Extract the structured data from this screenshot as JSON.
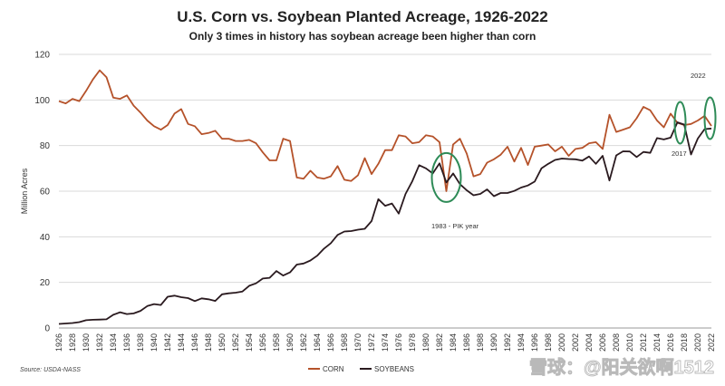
{
  "chart_data": {
    "type": "line",
    "title": "U.S. Corn vs. Soybean Planted Acreage, 1926-2022",
    "subtitle": "Only 3 times in history has soybean acreage been higher than corn",
    "ylabel": "Million Acres",
    "xlabel": "",
    "ylim": [
      0,
      120
    ],
    "yticks": [
      0,
      20,
      40,
      60,
      80,
      100,
      120
    ],
    "xlim": [
      1926,
      2022
    ],
    "xticks": [
      1926,
      1928,
      1930,
      1932,
      1934,
      1936,
      1938,
      1940,
      1942,
      1944,
      1946,
      1948,
      1950,
      1952,
      1954,
      1956,
      1958,
      1960,
      1962,
      1964,
      1966,
      1968,
      1970,
      1972,
      1974,
      1976,
      1978,
      1980,
      1982,
      1984,
      1986,
      1988,
      1990,
      1992,
      1994,
      1996,
      1998,
      2000,
      2002,
      2004,
      2006,
      2008,
      2010,
      2012,
      2014,
      2016,
      2018,
      2020,
      2022
    ],
    "grid": "horizontal",
    "legend": "bottom",
    "series": [
      {
        "name": "CORN",
        "color": "#b5522a",
        "x": [
          1926,
          1927,
          1928,
          1929,
          1930,
          1931,
          1932,
          1933,
          1934,
          1935,
          1936,
          1937,
          1938,
          1939,
          1940,
          1941,
          1942,
          1943,
          1944,
          1945,
          1946,
          1947,
          1948,
          1949,
          1950,
          1951,
          1952,
          1953,
          1954,
          1955,
          1956,
          1957,
          1958,
          1959,
          1960,
          1961,
          1962,
          1963,
          1964,
          1965,
          1966,
          1967,
          1968,
          1969,
          1970,
          1971,
          1972,
          1973,
          1974,
          1975,
          1976,
          1977,
          1978,
          1979,
          1980,
          1981,
          1982,
          1983,
          1984,
          1985,
          1986,
          1987,
          1988,
          1989,
          1990,
          1991,
          1992,
          1993,
          1994,
          1995,
          1996,
          1997,
          1998,
          1999,
          2000,
          2001,
          2002,
          2003,
          2004,
          2005,
          2006,
          2007,
          2008,
          2009,
          2010,
          2011,
          2012,
          2013,
          2014,
          2015,
          2016,
          2017,
          2018,
          2019,
          2020,
          2021,
          2022
        ],
        "values": [
          99.5,
          98.5,
          100.5,
          99.5,
          104,
          109,
          113,
          110,
          101,
          100.5,
          102,
          97.5,
          94.5,
          91,
          88.5,
          87,
          89,
          94,
          96,
          89.5,
          88.5,
          85,
          85.5,
          86.5,
          83,
          83,
          82,
          82,
          82.5,
          81,
          77,
          73.5,
          73.5,
          83,
          82,
          66,
          65.5,
          69,
          66,
          65.5,
          66.5,
          71,
          65,
          64.5,
          67,
          74.5,
          67.5,
          72,
          78,
          78,
          84.5,
          84,
          81,
          81.5,
          84.5,
          84,
          81.5,
          60,
          80.5,
          83,
          76.5,
          66.5,
          67.5,
          72.5,
          74,
          76,
          79.5,
          73,
          79,
          71.5,
          79.5,
          80,
          80.5,
          77.5,
          79.5,
          75.5,
          78.5,
          79,
          81,
          81.5,
          78.5,
          93.5,
          86,
          87,
          88,
          92,
          97,
          95.5,
          91,
          88,
          94,
          90,
          89,
          89.5,
          91,
          93,
          88.6
        ]
      },
      {
        "name": "SOYBEANS",
        "color": "#2a1a1f",
        "x": [
          1926,
          1927,
          1928,
          1929,
          1930,
          1931,
          1932,
          1933,
          1934,
          1935,
          1936,
          1937,
          1938,
          1939,
          1940,
          1941,
          1942,
          1943,
          1944,
          1945,
          1946,
          1947,
          1948,
          1949,
          1950,
          1951,
          1952,
          1953,
          1954,
          1955,
          1956,
          1957,
          1958,
          1959,
          1960,
          1961,
          1962,
          1963,
          1964,
          1965,
          1966,
          1967,
          1968,
          1969,
          1970,
          1971,
          1972,
          1973,
          1974,
          1975,
          1976,
          1977,
          1978,
          1979,
          1980,
          1981,
          1982,
          1983,
          1984,
          1985,
          1986,
          1987,
          1988,
          1989,
          1990,
          1991,
          1992,
          1993,
          1994,
          1995,
          1996,
          1997,
          1998,
          1999,
          2000,
          2001,
          2002,
          2003,
          2004,
          2005,
          2006,
          2007,
          2008,
          2009,
          2010,
          2011,
          2012,
          2013,
          2014,
          2015,
          2016,
          2017,
          2018,
          2019,
          2020,
          2021,
          2022
        ],
        "values": [
          1.8,
          2,
          2.2,
          2.6,
          3.4,
          3.6,
          3.7,
          3.8,
          5.8,
          6.9,
          6.1,
          6.4,
          7.5,
          9.6,
          10.5,
          10.1,
          13.7,
          14.2,
          13.5,
          13.1,
          11.8,
          13,
          12.6,
          11.9,
          14.8,
          15.2,
          15.5,
          16,
          18.5,
          19.6,
          21.7,
          22,
          25,
          23,
          24.4,
          27.8,
          28.3,
          29.6,
          31.7,
          34.8,
          37.2,
          40.8,
          42.3,
          42.5,
          43.1,
          43.5,
          46.9,
          56.5,
          53.6,
          54.6,
          50.2,
          58.8,
          64.4,
          71.4,
          70,
          67.8,
          72.2,
          63.8,
          67.8,
          63.1,
          60.4,
          58.2,
          58.8,
          60.8,
          57.8,
          59.2,
          59.2,
          60.1,
          61.6,
          62.5,
          64.2,
          70,
          72,
          73.7,
          74.3,
          74.1,
          74,
          73.4,
          75.2,
          72,
          75.5,
          64.7,
          75.7,
          77.5,
          77.4,
          75,
          77.2,
          76.8,
          83.3,
          82.7,
          83.5,
          90.2,
          89.2,
          76.1,
          83.1,
          87.2,
          87.5
        ]
      }
    ],
    "annotations": {
      "circle_1983": "1983 - PIK year",
      "label_2017": "2017",
      "label_2022": "2022"
    },
    "source": "Source: USDA-NASS",
    "watermark": "雪球：@阳关欲啊1512"
  }
}
